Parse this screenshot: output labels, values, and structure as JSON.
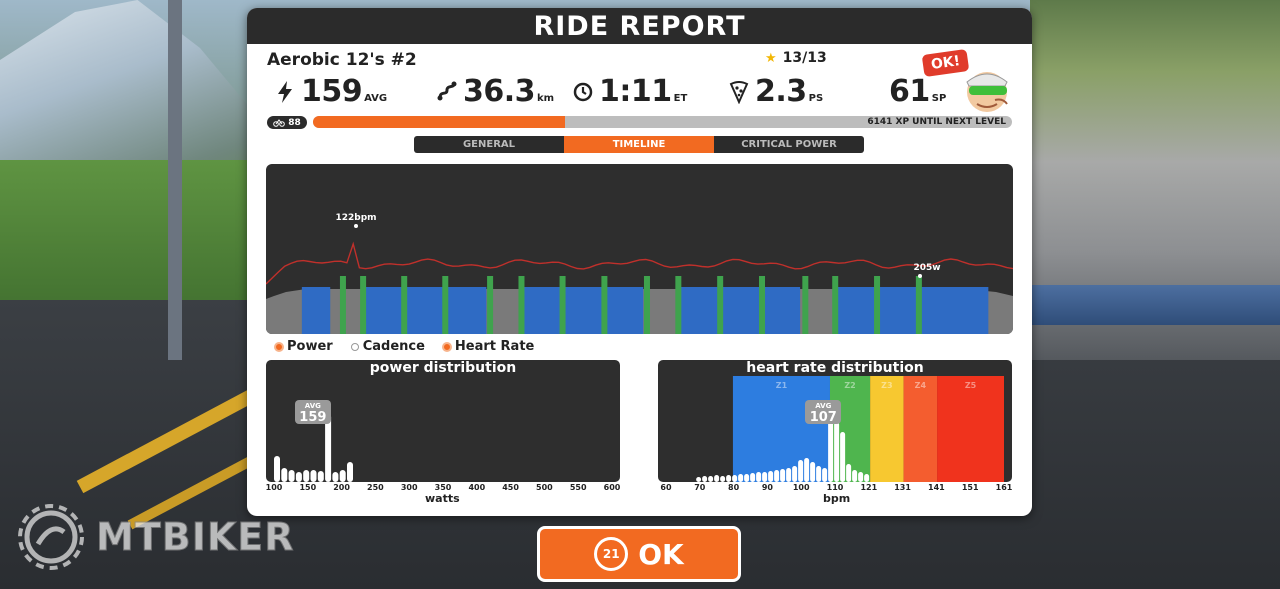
{
  "report": {
    "title": "RIDE REPORT",
    "ride_name": "Aerobic 12's #2",
    "stars": "13/13",
    "ok_bubble": "OK!",
    "stats": {
      "power": {
        "value": "159",
        "unit": "AVG"
      },
      "distance": {
        "value": "36.3",
        "unit": "km"
      },
      "time": {
        "value": "1:11",
        "unit": "ET"
      },
      "pizza": {
        "value": "2.3",
        "unit": "PS"
      },
      "sp": {
        "value": "61",
        "unit": "SP"
      }
    },
    "level": "88",
    "xp_progress": 0.36,
    "xp_text": "6141 XP UNTIL NEXT LEVEL"
  },
  "tabs": [
    {
      "label": "GENERAL",
      "active": false
    },
    {
      "label": "TIMELINE",
      "active": true
    },
    {
      "label": "CRITICAL POWER",
      "active": false
    }
  ],
  "timeline": {
    "hr_peak_label": "122bpm",
    "power_peak_label": "205w",
    "colors": {
      "background": "#2e2e2e",
      "baseline": "#7a7a7a",
      "block": "#2f6bc4",
      "interval": "#3fa34d",
      "hr": "#c0302b"
    },
    "blocks": [
      {
        "start": 0.048,
        "end": 0.086
      },
      {
        "start": 0.131,
        "end": 0.295
      },
      {
        "start": 0.345,
        "end": 0.505
      },
      {
        "start": 0.555,
        "end": 0.715
      },
      {
        "start": 0.765,
        "end": 0.967
      }
    ],
    "intervals": [
      0.103,
      0.13,
      0.185,
      0.24,
      0.3,
      0.342,
      0.397,
      0.453,
      0.51,
      0.552,
      0.608,
      0.664,
      0.722,
      0.762,
      0.818,
      0.874
    ]
  },
  "legend": [
    {
      "label": "Power",
      "on": true
    },
    {
      "label": "Cadence",
      "on": false
    },
    {
      "label": "Heart Rate",
      "on": true
    }
  ],
  "power_dist": {
    "title": "power distribution",
    "xlabel": "watts",
    "ticks": [
      "100",
      "150",
      "200",
      "250",
      "300",
      "350",
      "400",
      "450",
      "500",
      "550",
      "600"
    ],
    "avg_label": "AVG",
    "avg_value": "159",
    "avg_pos": 0.115,
    "bars": [
      0.26,
      0.14,
      0.12,
      0.1,
      0.12,
      0.12,
      0.11,
      0.68,
      0.1,
      0.12,
      0.2
    ]
  },
  "hr_dist": {
    "title": "heart rate distribution",
    "xlabel": "bpm",
    "ticks": [
      "60",
      "70",
      "80",
      "90",
      "100",
      "110",
      "121",
      "131",
      "141",
      "151",
      "161"
    ],
    "zones": [
      {
        "label": "Z1",
        "start": 80,
        "end": 109,
        "color": "#2d7de0"
      },
      {
        "label": "Z2",
        "start": 109,
        "end": 121,
        "color": "#4fb54e"
      },
      {
        "label": "Z3",
        "start": 121,
        "end": 131,
        "color": "#f7c830"
      },
      {
        "label": "Z4",
        "start": 131,
        "end": 141,
        "color": "#f45d2f"
      },
      {
        "label": "Z5",
        "start": 141,
        "end": 161,
        "color": "#f0331d"
      }
    ],
    "avg_label": "AVG",
    "avg_value": "107",
    "avg_bpm": 107,
    "bars": [
      0.05,
      0.06,
      0.06,
      0.07,
      0.06,
      0.07,
      0.07,
      0.08,
      0.08,
      0.09,
      0.1,
      0.1,
      0.11,
      0.12,
      0.13,
      0.14,
      0.16,
      0.22,
      0.24,
      0.2,
      0.16,
      0.14,
      0.62,
      0.6,
      0.5,
      0.18,
      0.12,
      0.1,
      0.08
    ]
  },
  "ok_button": {
    "count": "21",
    "label": "OK"
  },
  "watermark": "MTBIKER"
}
